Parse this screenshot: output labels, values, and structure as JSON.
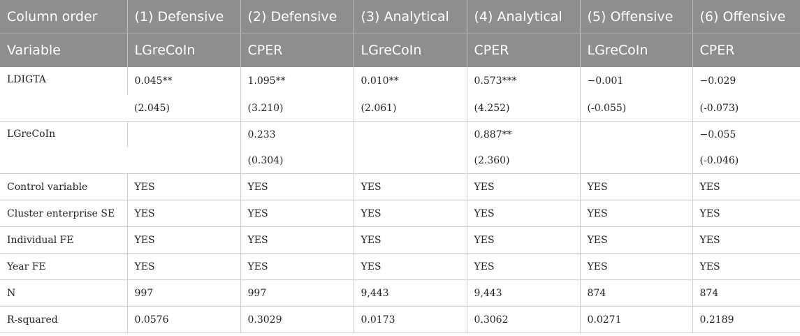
{
  "header": {
    "row1": [
      "Column order",
      "(1) Defensive",
      "(2) Defensive",
      "(3) Analytical",
      "(4) Analytical",
      "(5) Offensive",
      "(6) Offensive"
    ],
    "row2": [
      "Variable",
      "LGreCoIn",
      "CPER",
      "LGreCoIn",
      "CPER",
      "LGreCoIn",
      "CPER"
    ]
  },
  "rows": {
    "ldigta": {
      "label": "LDIGTA",
      "coef": [
        "0.045**",
        "1.095**",
        "0.010**",
        "0.573***",
        "−0.001",
        "−0.029"
      ],
      "t": [
        "(2.045)",
        "(3.210)",
        "(2.061)",
        "(4.252)",
        "(-0.055)",
        "(-0.073)"
      ]
    },
    "lgrecoin": {
      "label": "LGreCoIn",
      "coef": [
        "",
        "0.233",
        "",
        "0.887**",
        "",
        "−0.055"
      ],
      "t": [
        "",
        "(0.304)",
        "",
        "(2.360)",
        "",
        "(-0.046)"
      ]
    },
    "control": {
      "label": "Control variable",
      "values": [
        "YES",
        "YES",
        "YES",
        "YES",
        "YES",
        "YES"
      ]
    },
    "cluster": {
      "label": "Cluster enterprise SE",
      "values": [
        "YES",
        "YES",
        "YES",
        "YES",
        "YES",
        "YES"
      ]
    },
    "individual_fe": {
      "label": "Individual FE",
      "values": [
        "YES",
        "YES",
        "YES",
        "YES",
        "YES",
        "YES"
      ]
    },
    "year_fe": {
      "label": "Year FE",
      "values": [
        "YES",
        "YES",
        "YES",
        "YES",
        "YES",
        "YES"
      ]
    },
    "n": {
      "label": "N",
      "values": [
        "997",
        "997",
        "9,443",
        "9,443",
        "874",
        "874"
      ]
    },
    "r2": {
      "label": "R-squared",
      "values": [
        "0.0576",
        "0.3029",
        "0.0173",
        "0.3062",
        "0.0271",
        "0.2189"
      ]
    }
  }
}
